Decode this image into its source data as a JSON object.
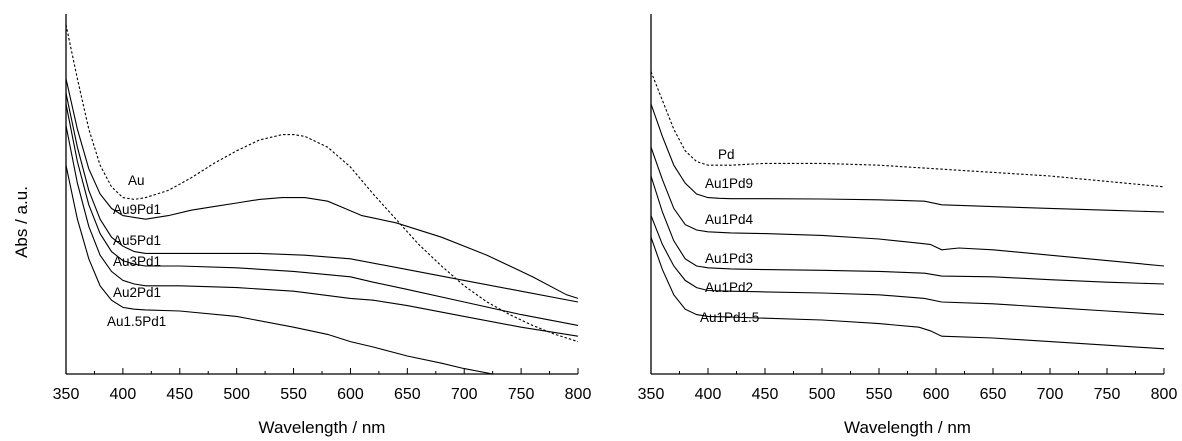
{
  "chart_data": [
    {
      "type": "line",
      "xlabel": "Wavelength / nm",
      "ylabel": "Abs / a.u.",
      "xlim": [
        350,
        800
      ],
      "ylim": [
        0,
        1
      ],
      "x_ticks": [
        "350",
        "400",
        "450",
        "500",
        "550",
        "600",
        "650",
        "700",
        "750",
        "800"
      ],
      "y_ticks_shown": false,
      "series": [
        {
          "name": "Au",
          "style": "dashed",
          "points": [
            [
              350,
              0.97
            ],
            [
              360,
              0.82
            ],
            [
              370,
              0.68
            ],
            [
              380,
              0.58
            ],
            [
              390,
              0.52
            ],
            [
              400,
              0.49
            ],
            [
              410,
              0.485
            ],
            [
              420,
              0.49
            ],
            [
              440,
              0.51
            ],
            [
              460,
              0.545
            ],
            [
              480,
              0.585
            ],
            [
              500,
              0.62
            ],
            [
              520,
              0.65
            ],
            [
              540,
              0.665
            ],
            [
              550,
              0.665
            ],
            [
              560,
              0.66
            ],
            [
              580,
              0.63
            ],
            [
              600,
              0.575
            ],
            [
              620,
              0.5
            ],
            [
              640,
              0.43
            ],
            [
              660,
              0.36
            ],
            [
              680,
              0.3
            ],
            [
              700,
              0.245
            ],
            [
              720,
              0.2
            ],
            [
              740,
              0.165
            ],
            [
              760,
              0.135
            ],
            [
              780,
              0.11
            ],
            [
              800,
              0.09
            ]
          ]
        },
        {
          "name": "Au9Pd1",
          "style": "solid",
          "points": [
            [
              350,
              0.82
            ],
            [
              360,
              0.68
            ],
            [
              370,
              0.57
            ],
            [
              380,
              0.5
            ],
            [
              390,
              0.46
            ],
            [
              400,
              0.44
            ],
            [
              410,
              0.435
            ],
            [
              420,
              0.43
            ],
            [
              440,
              0.44
            ],
            [
              460,
              0.455
            ],
            [
              480,
              0.465
            ],
            [
              500,
              0.475
            ],
            [
              520,
              0.485
            ],
            [
              540,
              0.49
            ],
            [
              560,
              0.49
            ],
            [
              580,
              0.48
            ],
            [
              595,
              0.46
            ],
            [
              610,
              0.44
            ],
            [
              640,
              0.42
            ],
            [
              680,
              0.38
            ],
            [
              720,
              0.33
            ],
            [
              760,
              0.27
            ],
            [
              790,
              0.22
            ],
            [
              800,
              0.21
            ]
          ]
        },
        {
          "name": "Au5Pd1",
          "style": "solid",
          "points": [
            [
              350,
              0.78
            ],
            [
              360,
              0.63
            ],
            [
              370,
              0.51
            ],
            [
              380,
              0.43
            ],
            [
              390,
              0.38
            ],
            [
              400,
              0.355
            ],
            [
              410,
              0.34
            ],
            [
              420,
              0.335
            ],
            [
              440,
              0.335
            ],
            [
              480,
              0.335
            ],
            [
              520,
              0.335
            ],
            [
              560,
              0.33
            ],
            [
              600,
              0.32
            ],
            [
              650,
              0.29
            ],
            [
              700,
              0.26
            ],
            [
              750,
              0.23
            ],
            [
              800,
              0.2
            ]
          ]
        },
        {
          "name": "Au3Pd1",
          "style": "solid",
          "points": [
            [
              350,
              0.75
            ],
            [
              360,
              0.59
            ],
            [
              370,
              0.47
            ],
            [
              380,
              0.39
            ],
            [
              390,
              0.34
            ],
            [
              400,
              0.315
            ],
            [
              410,
              0.305
            ],
            [
              420,
              0.3
            ],
            [
              450,
              0.3
            ],
            [
              500,
              0.295
            ],
            [
              550,
              0.285
            ],
            [
              600,
              0.27
            ],
            [
              620,
              0.255
            ],
            [
              650,
              0.235
            ],
            [
              700,
              0.2
            ],
            [
              750,
              0.165
            ],
            [
              800,
              0.135
            ]
          ]
        },
        {
          "name": "Au2Pd1",
          "style": "solid",
          "points": [
            [
              350,
              0.69
            ],
            [
              360,
              0.53
            ],
            [
              370,
              0.41
            ],
            [
              380,
              0.33
            ],
            [
              390,
              0.285
            ],
            [
              400,
              0.26
            ],
            [
              410,
              0.25
            ],
            [
              420,
              0.245
            ],
            [
              450,
              0.245
            ],
            [
              500,
              0.24
            ],
            [
              550,
              0.23
            ],
            [
              600,
              0.21
            ],
            [
              620,
              0.205
            ],
            [
              650,
              0.19
            ],
            [
              700,
              0.16
            ],
            [
              750,
              0.13
            ],
            [
              800,
              0.105
            ]
          ]
        },
        {
          "name": "Au1.5Pd1",
          "style": "solid",
          "points": [
            [
              350,
              0.58
            ],
            [
              360,
              0.43
            ],
            [
              370,
              0.32
            ],
            [
              380,
              0.245
            ],
            [
              390,
              0.205
            ],
            [
              400,
              0.185
            ],
            [
              410,
              0.18
            ],
            [
              420,
              0.178
            ],
            [
              450,
              0.175
            ],
            [
              500,
              0.16
            ],
            [
              550,
              0.13
            ],
            [
              580,
              0.11
            ],
            [
              600,
              0.09
            ],
            [
              620,
              0.075
            ],
            [
              650,
              0.05
            ],
            [
              680,
              0.03
            ],
            [
              700,
              0.015
            ],
            [
              725,
              0.0
            ]
          ]
        }
      ]
    },
    {
      "type": "line",
      "xlabel": "Wavelength / nm",
      "ylabel": "",
      "xlim": [
        350,
        800
      ],
      "ylim": [
        0,
        1
      ],
      "x_ticks": [
        "350",
        "400",
        "450",
        "500",
        "550",
        "600",
        "650",
        "700",
        "750",
        "800"
      ],
      "y_ticks_shown": false,
      "series": [
        {
          "name": "Pd",
          "style": "dashed",
          "points": [
            [
              350,
              0.84
            ],
            [
              360,
              0.76
            ],
            [
              370,
              0.68
            ],
            [
              380,
              0.62
            ],
            [
              390,
              0.59
            ],
            [
              400,
              0.58
            ],
            [
              410,
              0.58
            ],
            [
              420,
              0.58
            ],
            [
              450,
              0.585
            ],
            [
              500,
              0.585
            ],
            [
              550,
              0.58
            ],
            [
              600,
              0.57
            ],
            [
              650,
              0.56
            ],
            [
              700,
              0.55
            ],
            [
              750,
              0.535
            ],
            [
              800,
              0.52
            ]
          ]
        },
        {
          "name": "Au1Pd9",
          "style": "solid",
          "points": [
            [
              350,
              0.75
            ],
            [
              360,
              0.66
            ],
            [
              370,
              0.58
            ],
            [
              380,
              0.53
            ],
            [
              390,
              0.5
            ],
            [
              400,
              0.49
            ],
            [
              410,
              0.488
            ],
            [
              420,
              0.487
            ],
            [
              450,
              0.487
            ],
            [
              500,
              0.486
            ],
            [
              550,
              0.484
            ],
            [
              590,
              0.48
            ],
            [
              605,
              0.47
            ],
            [
              650,
              0.465
            ],
            [
              700,
              0.46
            ],
            [
              750,
              0.455
            ],
            [
              800,
              0.45
            ]
          ]
        },
        {
          "name": "Au1Pd4",
          "style": "solid",
          "points": [
            [
              350,
              0.63
            ],
            [
              360,
              0.54
            ],
            [
              370,
              0.46
            ],
            [
              380,
              0.415
            ],
            [
              390,
              0.4
            ],
            [
              400,
              0.395
            ],
            [
              420,
              0.392
            ],
            [
              450,
              0.39
            ],
            [
              500,
              0.385
            ],
            [
              550,
              0.375
            ],
            [
              580,
              0.365
            ],
            [
              595,
              0.36
            ],
            [
              605,
              0.345
            ],
            [
              620,
              0.35
            ],
            [
              650,
              0.345
            ],
            [
              700,
              0.33
            ],
            [
              750,
              0.315
            ],
            [
              800,
              0.3
            ]
          ]
        },
        {
          "name": "Au1Pd3",
          "style": "solid",
          "points": [
            [
              350,
              0.55
            ],
            [
              360,
              0.45
            ],
            [
              370,
              0.37
            ],
            [
              380,
              0.32
            ],
            [
              390,
              0.3
            ],
            [
              400,
              0.295
            ],
            [
              420,
              0.292
            ],
            [
              450,
              0.29
            ],
            [
              500,
              0.288
            ],
            [
              550,
              0.285
            ],
            [
              590,
              0.28
            ],
            [
              605,
              0.272
            ],
            [
              650,
              0.27
            ],
            [
              700,
              0.262
            ],
            [
              750,
              0.255
            ],
            [
              800,
              0.25
            ]
          ]
        },
        {
          "name": "Au1Pd2",
          "style": "solid",
          "points": [
            [
              350,
              0.44
            ],
            [
              360,
              0.36
            ],
            [
              370,
              0.3
            ],
            [
              380,
              0.26
            ],
            [
              390,
              0.24
            ],
            [
              400,
              0.232
            ],
            [
              420,
              0.23
            ],
            [
              450,
              0.228
            ],
            [
              500,
              0.225
            ],
            [
              550,
              0.22
            ],
            [
              590,
              0.21
            ],
            [
              605,
              0.2
            ],
            [
              650,
              0.195
            ],
            [
              700,
              0.185
            ],
            [
              750,
              0.175
            ],
            [
              800,
              0.165
            ]
          ]
        },
        {
          "name": "Au1Pd1.5",
          "style": "solid",
          "points": [
            [
              350,
              0.38
            ],
            [
              360,
              0.29
            ],
            [
              370,
              0.22
            ],
            [
              380,
              0.18
            ],
            [
              390,
              0.165
            ],
            [
              400,
              0.16
            ],
            [
              420,
              0.158
            ],
            [
              450,
              0.155
            ],
            [
              500,
              0.15
            ],
            [
              550,
              0.14
            ],
            [
              585,
              0.13
            ],
            [
              595,
              0.12
            ],
            [
              605,
              0.105
            ],
            [
              650,
              0.1
            ],
            [
              700,
              0.09
            ],
            [
              750,
              0.08
            ],
            [
              800,
              0.07
            ]
          ]
        }
      ]
    }
  ]
}
